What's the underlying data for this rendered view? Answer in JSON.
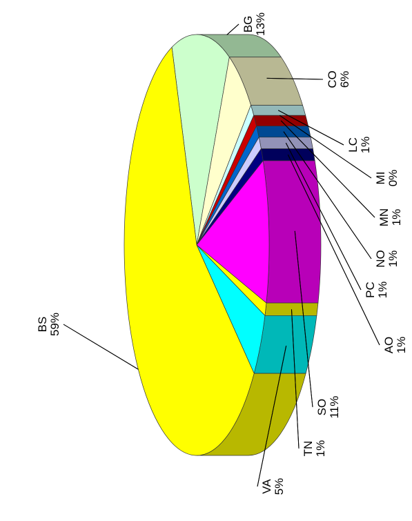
{
  "chart_data": {
    "type": "pie",
    "categories": [
      "BG",
      "CO",
      "LC",
      "MI",
      "MN",
      "NO",
      "PC",
      "AO",
      "SO",
      "TN",
      "VA",
      "BS"
    ],
    "values": [
      13,
      6,
      1,
      0,
      1,
      1,
      1,
      1,
      11,
      1,
      5,
      59
    ],
    "value_labels": [
      "13%",
      "6%",
      "1%",
      "0%",
      "1%",
      "1%",
      "1%",
      "1%",
      "11%",
      "1%",
      "5%",
      "59%"
    ],
    "colors": [
      "#ccffcc",
      "#ffffcc",
      "#ccffff",
      "#99ccff",
      "#cc0000",
      "#0066cc",
      "#ccccff",
      "#000080",
      "#ff00ff",
      "#ffff00",
      "#00ffff",
      "#ffff00"
    ]
  }
}
